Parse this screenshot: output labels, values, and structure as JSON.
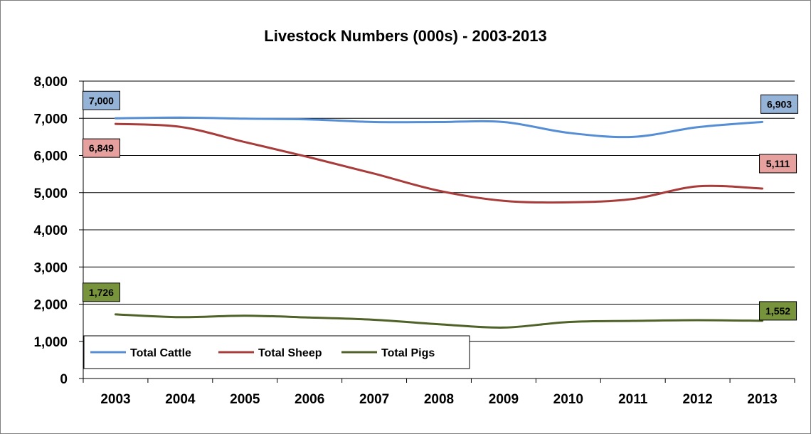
{
  "chart_data": {
    "type": "line",
    "title": "Livestock Numbers (000s) -   2003-2013",
    "xlabel": "",
    "ylabel": "",
    "categories": [
      "2003",
      "2004",
      "2005",
      "2006",
      "2007",
      "2008",
      "2009",
      "2010",
      "2011",
      "2012",
      "2013"
    ],
    "ylim": [
      0,
      8000
    ],
    "yticks": [
      0,
      1000,
      2000,
      3000,
      4000,
      5000,
      6000,
      7000,
      8000
    ],
    "ytick_labels": [
      "0",
      "1,000",
      "2,000",
      "3,000",
      "4,000",
      "5,000",
      "6,000",
      "7,000",
      "8,000"
    ],
    "grid": true,
    "legend_position": "bottom-left",
    "series": [
      {
        "name": "Total Cattle",
        "color": "#558ed5",
        "label_fill": "#95b3d7",
        "values": [
          7000,
          7020,
          6990,
          6970,
          6900,
          6900,
          6900,
          6610,
          6500,
          6760,
          6903
        ],
        "data_labels": [
          {
            "index": 0,
            "text": "7,000"
          },
          {
            "index": 10,
            "text": "6,903"
          }
        ]
      },
      {
        "name": "Total Sheep",
        "color": "#a83c3a",
        "label_fill": "#e6a19f",
        "values": [
          6849,
          6770,
          6360,
          5950,
          5510,
          5050,
          4780,
          4740,
          4830,
          5170,
          5111
        ],
        "data_labels": [
          {
            "index": 0,
            "text": "6,849"
          },
          {
            "index": 10,
            "text": "5,111"
          }
        ]
      },
      {
        "name": "Total Pigs",
        "color": "#4f6228",
        "label_fill": "#77933c",
        "values": [
          1726,
          1650,
          1690,
          1640,
          1580,
          1460,
          1370,
          1520,
          1550,
          1570,
          1552
        ],
        "data_labels": [
          {
            "index": 0,
            "text": "1,726"
          },
          {
            "index": 10,
            "text": "1,552"
          }
        ]
      }
    ]
  }
}
